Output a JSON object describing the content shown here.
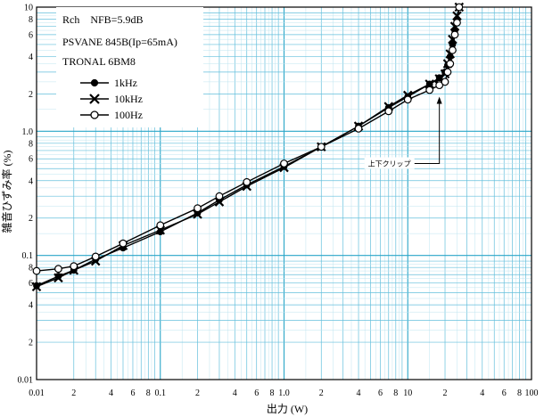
{
  "chart_data": {
    "type": "line",
    "xscale": "log",
    "yscale": "log",
    "xlim": [
      0.01,
      100
    ],
    "ylim": [
      0.01,
      10
    ],
    "xlabel": "出力 (W)",
    "ylabel": "雑音ひずみ率 (%)",
    "notes": [
      "Rch　NFB=5.9dB",
      "PSVANE 845B(Ip=65mA)",
      "TRONAL 6BM8"
    ],
    "legend_position": "top-left",
    "x_tick_labels": [
      {
        "v": 0.01,
        "t": "0.01"
      },
      {
        "v": 0.02,
        "t": "2"
      },
      {
        "v": 0.04,
        "t": "4"
      },
      {
        "v": 0.06,
        "t": "6"
      },
      {
        "v": 0.08,
        "t": "8"
      },
      {
        "v": 0.1,
        "t": "0.1"
      },
      {
        "v": 0.2,
        "t": "2"
      },
      {
        "v": 0.4,
        "t": "4"
      },
      {
        "v": 0.6,
        "t": "6"
      },
      {
        "v": 0.8,
        "t": "8"
      },
      {
        "v": 1,
        "t": "1.0"
      },
      {
        "v": 2,
        "t": "2"
      },
      {
        "v": 4,
        "t": "4"
      },
      {
        "v": 6,
        "t": "6"
      },
      {
        "v": 8,
        "t": "8"
      },
      {
        "v": 10,
        "t": "10"
      },
      {
        "v": 20,
        "t": "2"
      },
      {
        "v": 40,
        "t": "4"
      },
      {
        "v": 60,
        "t": "6"
      },
      {
        "v": 80,
        "t": "8"
      },
      {
        "v": 100,
        "t": "100"
      }
    ],
    "y_tick_labels": [
      {
        "v": 0.01,
        "t": "0.01"
      },
      {
        "v": 0.02,
        "t": "2"
      },
      {
        "v": 0.04,
        "t": "4"
      },
      {
        "v": 0.06,
        "t": "6"
      },
      {
        "v": 0.08,
        "t": "8"
      },
      {
        "v": 0.1,
        "t": "0.1"
      },
      {
        "v": 0.2,
        "t": "2"
      },
      {
        "v": 0.4,
        "t": "4"
      },
      {
        "v": 0.6,
        "t": "6"
      },
      {
        "v": 0.8,
        "t": "8"
      },
      {
        "v": 1,
        "t": "1.0"
      },
      {
        "v": 2,
        "t": "2"
      },
      {
        "v": 4,
        "t": "4"
      },
      {
        "v": 6,
        "t": "6"
      },
      {
        "v": 8,
        "t": "8"
      },
      {
        "v": 10,
        "t": "10"
      }
    ],
    "series": [
      {
        "name": "1kHz",
        "marker": "filled-circle",
        "points": [
          [
            0.01,
            0.057
          ],
          [
            0.015,
            0.068
          ],
          [
            0.02,
            0.076
          ],
          [
            0.03,
            0.093
          ],
          [
            0.05,
            0.115
          ],
          [
            0.1,
            0.155
          ],
          [
            0.2,
            0.22
          ],
          [
            0.3,
            0.28
          ],
          [
            0.5,
            0.37
          ],
          [
            1.0,
            0.52
          ],
          [
            2.0,
            0.75
          ],
          [
            4.0,
            1.1
          ],
          [
            7.0,
            1.55
          ],
          [
            10.0,
            1.9
          ],
          [
            15.0,
            2.4
          ],
          [
            18.0,
            2.7
          ],
          [
            20.0,
            3.0
          ],
          [
            21.0,
            3.4
          ],
          [
            22.0,
            4.0
          ],
          [
            23.0,
            5.0
          ],
          [
            24.0,
            6.5
          ],
          [
            25.0,
            8.0
          ],
          [
            26.0,
            10.0
          ]
        ]
      },
      {
        "name": "10kHz",
        "marker": "x",
        "points": [
          [
            0.01,
            0.056
          ],
          [
            0.015,
            0.066
          ],
          [
            0.02,
            0.076
          ],
          [
            0.03,
            0.09
          ],
          [
            0.05,
            0.12
          ],
          [
            0.1,
            0.16
          ],
          [
            0.2,
            0.215
          ],
          [
            0.3,
            0.27
          ],
          [
            0.5,
            0.36
          ],
          [
            1.0,
            0.51
          ],
          [
            2.0,
            0.75
          ],
          [
            4.0,
            1.1
          ],
          [
            7.0,
            1.58
          ],
          [
            10.0,
            1.95
          ],
          [
            15.0,
            2.4
          ],
          [
            18.0,
            2.65
          ],
          [
            20.0,
            2.9
          ],
          [
            21.0,
            3.5
          ],
          [
            22.0,
            4.2
          ],
          [
            23.0,
            5.5
          ],
          [
            24.0,
            7.0
          ],
          [
            25.0,
            8.5
          ],
          [
            26.0,
            10.0
          ]
        ]
      },
      {
        "name": "100Hz",
        "marker": "open-circle",
        "points": [
          [
            0.01,
            0.075
          ],
          [
            0.015,
            0.078
          ],
          [
            0.02,
            0.082
          ],
          [
            0.03,
            0.098
          ],
          [
            0.05,
            0.125
          ],
          [
            0.1,
            0.175
          ],
          [
            0.2,
            0.24
          ],
          [
            0.3,
            0.3
          ],
          [
            0.5,
            0.39
          ],
          [
            1.0,
            0.55
          ],
          [
            2.0,
            0.75
          ],
          [
            4.0,
            1.05
          ],
          [
            7.0,
            1.45
          ],
          [
            10.0,
            1.8
          ],
          [
            15.0,
            2.15
          ],
          [
            18.0,
            2.35
          ],
          [
            20.0,
            2.5
          ],
          [
            21.0,
            3.0
          ],
          [
            22.0,
            3.5
          ],
          [
            23.0,
            4.5
          ],
          [
            24.0,
            6.0
          ],
          [
            25.0,
            7.5
          ],
          [
            26.0,
            10.0
          ]
        ]
      }
    ],
    "annotation": {
      "text": "上下クリップ",
      "x": 18,
      "y": 0.55,
      "arrow_x": 18,
      "arrow_to_y": 1.9
    }
  }
}
